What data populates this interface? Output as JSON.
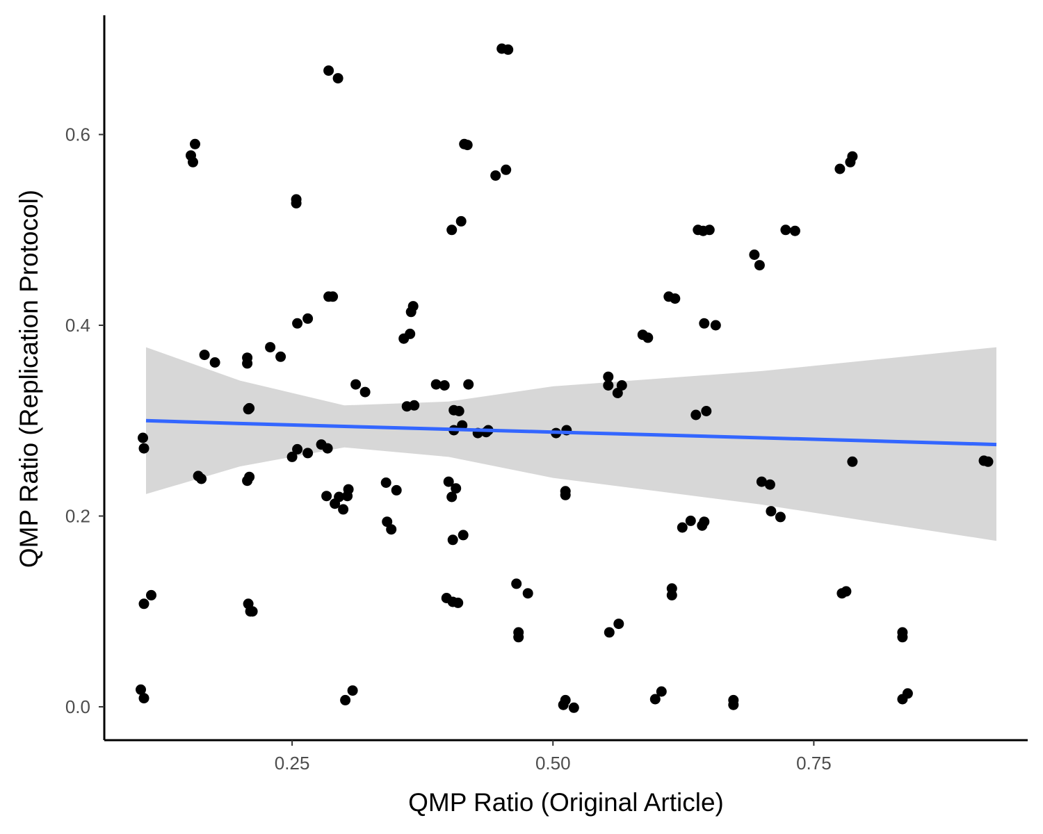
{
  "chart_data": {
    "type": "scatter",
    "title": "",
    "xlabel": "QMP Ratio (Original Article)",
    "ylabel": "QMP Ratio (Replication Protocol)",
    "xlim": [
      0.07,
      0.955
    ],
    "ylim": [
      -0.035,
      0.725
    ],
    "xticks": [
      0.25,
      0.5,
      0.75
    ],
    "xtick_labels": [
      "0.25",
      "0.50",
      "0.75"
    ],
    "yticks": [
      0.0,
      0.2,
      0.4,
      0.6
    ],
    "ytick_labels": [
      "0.0",
      "0.2",
      "0.4",
      "0.6"
    ],
    "grid": false,
    "point_color": "#000000",
    "smooth": {
      "method": "linear",
      "color": "#3366ff",
      "band_color": "#d3d3d3",
      "x": [
        0.11,
        0.2,
        0.3,
        0.4,
        0.5,
        0.6,
        0.7,
        0.8,
        0.925
      ],
      "y": [
        0.3,
        0.297,
        0.294,
        0.291,
        0.288,
        0.285,
        0.282,
        0.279,
        0.275
      ],
      "ymin": [
        0.223,
        0.252,
        0.272,
        0.262,
        0.24,
        0.226,
        0.212,
        0.195,
        0.174
      ],
      "ymax": [
        0.377,
        0.342,
        0.316,
        0.32,
        0.336,
        0.344,
        0.352,
        0.363,
        0.377
      ]
    },
    "points": [
      [
        0.107,
        0.282
      ],
      [
        0.108,
        0.271
      ],
      [
        0.105,
        0.018
      ],
      [
        0.108,
        0.009
      ],
      [
        0.108,
        0.108
      ],
      [
        0.115,
        0.117
      ],
      [
        0.153,
        0.578
      ],
      [
        0.155,
        0.571
      ],
      [
        0.157,
        0.59
      ],
      [
        0.16,
        0.242
      ],
      [
        0.163,
        0.239
      ],
      [
        0.166,
        0.369
      ],
      [
        0.176,
        0.361
      ],
      [
        0.207,
        0.366
      ],
      [
        0.207,
        0.36
      ],
      [
        0.208,
        0.312
      ],
      [
        0.209,
        0.313
      ],
      [
        0.207,
        0.237
      ],
      [
        0.209,
        0.241
      ],
      [
        0.208,
        0.108
      ],
      [
        0.21,
        0.1
      ],
      [
        0.212,
        0.1
      ],
      [
        0.229,
        0.377
      ],
      [
        0.239,
        0.367
      ],
      [
        0.25,
        0.262
      ],
      [
        0.254,
        0.532
      ],
      [
        0.254,
        0.528
      ],
      [
        0.255,
        0.402
      ],
      [
        0.255,
        0.27
      ],
      [
        0.265,
        0.407
      ],
      [
        0.265,
        0.266
      ],
      [
        0.278,
        0.275
      ],
      [
        0.284,
        0.271
      ],
      [
        0.285,
        0.667
      ],
      [
        0.285,
        0.43
      ],
      [
        0.289,
        0.43
      ],
      [
        0.294,
        0.659
      ],
      [
        0.283,
        0.221
      ],
      [
        0.291,
        0.213
      ],
      [
        0.295,
        0.22
      ],
      [
        0.299,
        0.207
      ],
      [
        0.303,
        0.221
      ],
      [
        0.304,
        0.228
      ],
      [
        0.301,
        0.007
      ],
      [
        0.308,
        0.017
      ],
      [
        0.311,
        0.338
      ],
      [
        0.32,
        0.33
      ],
      [
        0.34,
        0.235
      ],
      [
        0.341,
        0.194
      ],
      [
        0.345,
        0.186
      ],
      [
        0.35,
        0.227
      ],
      [
        0.357,
        0.386
      ],
      [
        0.36,
        0.315
      ],
      [
        0.363,
        0.391
      ],
      [
        0.364,
        0.414
      ],
      [
        0.366,
        0.42
      ],
      [
        0.367,
        0.316
      ],
      [
        0.388,
        0.338
      ],
      [
        0.396,
        0.337
      ],
      [
        0.398,
        0.114
      ],
      [
        0.4,
        0.236
      ],
      [
        0.403,
        0.5
      ],
      [
        0.403,
        0.22
      ],
      [
        0.404,
        0.11
      ],
      [
        0.404,
        0.175
      ],
      [
        0.405,
        0.311
      ],
      [
        0.405,
        0.29
      ],
      [
        0.407,
        0.229
      ],
      [
        0.409,
        0.109
      ],
      [
        0.41,
        0.31
      ],
      [
        0.412,
        0.509
      ],
      [
        0.413,
        0.295
      ],
      [
        0.414,
        0.18
      ],
      [
        0.415,
        0.59
      ],
      [
        0.418,
        0.589
      ],
      [
        0.419,
        0.338
      ],
      [
        0.428,
        0.287
      ],
      [
        0.436,
        0.288
      ],
      [
        0.438,
        0.29
      ],
      [
        0.445,
        0.557
      ],
      [
        0.451,
        0.69
      ],
      [
        0.457,
        0.689
      ],
      [
        0.455,
        0.563
      ],
      [
        0.465,
        0.129
      ],
      [
        0.467,
        0.073
      ],
      [
        0.467,
        0.078
      ],
      [
        0.476,
        0.119
      ],
      [
        0.503,
        0.287
      ],
      [
        0.51,
        0.002
      ],
      [
        0.512,
        0.007
      ],
      [
        0.513,
        0.29
      ],
      [
        0.512,
        0.222
      ],
      [
        0.512,
        0.226
      ],
      [
        0.52,
        -0.001
      ],
      [
        0.553,
        0.346
      ],
      [
        0.553,
        0.337
      ],
      [
        0.554,
        0.078
      ],
      [
        0.562,
        0.329
      ],
      [
        0.566,
        0.337
      ],
      [
        0.563,
        0.087
      ],
      [
        0.586,
        0.39
      ],
      [
        0.591,
        0.387
      ],
      [
        0.598,
        0.008
      ],
      [
        0.604,
        0.016
      ],
      [
        0.611,
        0.43
      ],
      [
        0.614,
        0.124
      ],
      [
        0.614,
        0.117
      ],
      [
        0.617,
        0.428
      ],
      [
        0.624,
        0.188
      ],
      [
        0.632,
        0.195
      ],
      [
        0.637,
        0.306
      ],
      [
        0.639,
        0.5
      ],
      [
        0.643,
        0.19
      ],
      [
        0.644,
        0.499
      ],
      [
        0.645,
        0.402
      ],
      [
        0.645,
        0.194
      ],
      [
        0.647,
        0.31
      ],
      [
        0.65,
        0.5
      ],
      [
        0.656,
        0.4
      ],
      [
        0.673,
        0.007
      ],
      [
        0.673,
        0.002
      ],
      [
        0.693,
        0.474
      ],
      [
        0.698,
        0.463
      ],
      [
        0.7,
        0.236
      ],
      [
        0.709,
        0.205
      ],
      [
        0.708,
        0.233
      ],
      [
        0.718,
        0.199
      ],
      [
        0.723,
        0.5
      ],
      [
        0.732,
        0.499
      ],
      [
        0.775,
        0.564
      ],
      [
        0.777,
        0.119
      ],
      [
        0.781,
        0.121
      ],
      [
        0.785,
        0.571
      ],
      [
        0.787,
        0.577
      ],
      [
        0.787,
        0.257
      ],
      [
        0.835,
        0.078
      ],
      [
        0.835,
        0.073
      ],
      [
        0.835,
        0.008
      ],
      [
        0.84,
        0.014
      ],
      [
        0.913,
        0.258
      ],
      [
        0.917,
        0.257
      ]
    ]
  }
}
